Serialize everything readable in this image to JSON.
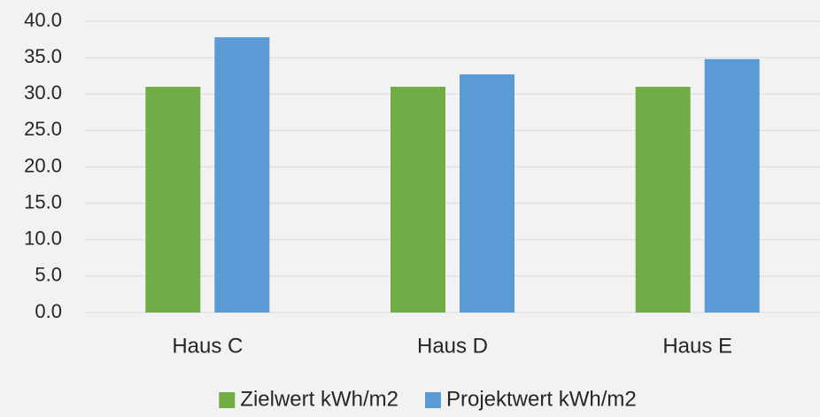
{
  "chart_data": {
    "type": "bar",
    "categories": [
      "Haus C",
      "Haus D",
      "Haus E"
    ],
    "series": [
      {
        "name": "Zielwert kWh/m2",
        "color": "#70ad47",
        "values": [
          31.0,
          31.0,
          31.0
        ]
      },
      {
        "name": "Projektwert kWh/m2",
        "color": "#5b9bd5",
        "values": [
          37.8,
          32.7,
          34.8
        ]
      }
    ],
    "ylim": [
      0,
      40
    ],
    "yticks": [
      {
        "value": 0,
        "label": "0.0"
      },
      {
        "value": 5,
        "label": "5.0"
      },
      {
        "value": 10,
        "label": "10.0"
      },
      {
        "value": 15,
        "label": "15.0"
      },
      {
        "value": 20,
        "label": "20.0"
      },
      {
        "value": 25,
        "label": "25.0"
      },
      {
        "value": 30,
        "label": "30.0"
      },
      {
        "value": 35,
        "label": "35.0"
      },
      {
        "value": 40,
        "label": "40.0"
      }
    ],
    "grid": true,
    "legend": "bottom"
  }
}
